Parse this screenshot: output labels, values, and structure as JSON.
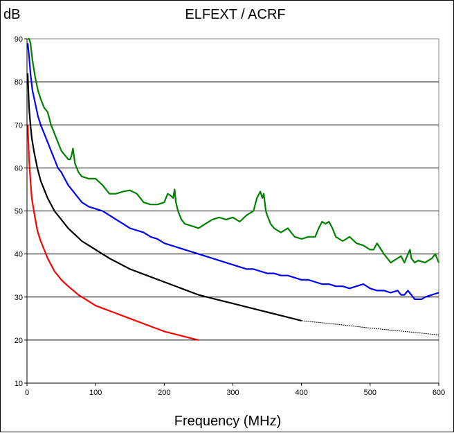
{
  "chart_data": {
    "type": "line",
    "title": "ELFEXT / ACRF",
    "ylabel": "dB",
    "xlabel": "Frequency (MHz)",
    "xlim": [
      0,
      600
    ],
    "ylim": [
      10,
      90
    ],
    "x_ticks": [
      0,
      100,
      200,
      300,
      400,
      500,
      600
    ],
    "y_ticks": [
      10,
      20,
      30,
      40,
      50,
      60,
      70,
      80,
      90
    ],
    "grid": "horizontal",
    "series": [
      {
        "color": "#008000",
        "x": [
          1,
          3,
          5,
          8,
          12,
          16,
          20,
          25,
          30,
          35,
          40,
          45,
          50,
          55,
          60,
          63,
          65,
          67,
          70,
          75,
          80,
          90,
          100,
          110,
          120,
          130,
          140,
          150,
          160,
          170,
          180,
          190,
          200,
          205,
          210,
          213,
          215,
          217,
          220,
          225,
          230,
          240,
          250,
          260,
          270,
          280,
          290,
          300,
          310,
          320,
          330,
          335,
          340,
          343,
          345,
          348,
          350,
          355,
          360,
          370,
          380,
          390,
          400,
          410,
          420,
          425,
          430,
          435,
          440,
          445,
          450,
          460,
          470,
          480,
          490,
          500,
          505,
          510,
          520,
          530,
          540,
          545,
          550,
          555,
          558,
          560,
          565,
          570,
          580,
          590,
          595,
          600
        ],
        "y": [
          90,
          90,
          89,
          85,
          81,
          78,
          76,
          74,
          73,
          70,
          68,
          66,
          64,
          63,
          62,
          62,
          63,
          64.5,
          61,
          59,
          58,
          57.5,
          57.5,
          56,
          54,
          54,
          54.5,
          54.8,
          54,
          52,
          51.5,
          51.5,
          52,
          54,
          53.5,
          53,
          55,
          52,
          50,
          48,
          47,
          46.5,
          46,
          47,
          48,
          48.5,
          48,
          48.5,
          47.5,
          49,
          50,
          53,
          54.5,
          53,
          54,
          50,
          49,
          47,
          46,
          45,
          46,
          44,
          43.5,
          44,
          44,
          46,
          47.5,
          47,
          47.5,
          46,
          44,
          43,
          44,
          42.5,
          42,
          41,
          41,
          42.5,
          40,
          38,
          39,
          39.5,
          38,
          40,
          41,
          39,
          38,
          38.5,
          38,
          39,
          40,
          38
        ]
      },
      {
        "color": "#0000ff",
        "x": [
          1,
          3,
          5,
          8,
          12,
          16,
          20,
          25,
          30,
          35,
          40,
          45,
          50,
          55,
          60,
          65,
          70,
          75,
          80,
          90,
          100,
          110,
          120,
          130,
          140,
          150,
          160,
          170,
          180,
          190,
          200,
          210,
          220,
          230,
          240,
          250,
          260,
          270,
          280,
          290,
          300,
          310,
          320,
          330,
          340,
          350,
          360,
          370,
          380,
          390,
          400,
          410,
          420,
          430,
          440,
          450,
          460,
          470,
          480,
          490,
          500,
          510,
          520,
          530,
          540,
          545,
          550,
          555,
          560,
          565,
          570,
          575,
          580,
          590,
          600
        ],
        "y": [
          89,
          86,
          82,
          78,
          75,
          72,
          70,
          68,
          66,
          64,
          62,
          60,
          59,
          57.5,
          56,
          55,
          54,
          53,
          52,
          51,
          50.5,
          50,
          49,
          48,
          47,
          46,
          45.5,
          45,
          44,
          43.5,
          42.5,
          42,
          41.5,
          41,
          40.5,
          40,
          39.5,
          39,
          38.5,
          38,
          37.5,
          37,
          36.5,
          36.5,
          36,
          35.5,
          35.5,
          35,
          35,
          34.5,
          34,
          34,
          33.5,
          33,
          33,
          32.5,
          32.5,
          32,
          32.5,
          33,
          32,
          31.5,
          31.5,
          31,
          31.5,
          30.5,
          30.5,
          31.5,
          30.5,
          29.5,
          29.5,
          29.5,
          30,
          30.5,
          31
        ]
      },
      {
        "color": "#000000",
        "x": [
          1,
          2,
          3,
          5,
          7,
          10,
          15,
          20,
          25,
          30,
          40,
          50,
          60,
          70,
          80,
          100,
          120,
          150,
          175,
          200,
          225,
          250,
          275,
          300,
          325,
          350,
          375,
          400
        ],
        "y": [
          82,
          78,
          74,
          70,
          67,
          64,
          60,
          57,
          55,
          53,
          50,
          48,
          46,
          44.5,
          43,
          41,
          39,
          36.5,
          35,
          33.5,
          32,
          30.5,
          29.5,
          28.5,
          27.5,
          26.5,
          25.5,
          24.5
        ]
      },
      {
        "color": "#000000",
        "dashed": true,
        "x": [
          400,
          450,
          500,
          550,
          600
        ],
        "y": [
          24.5,
          23.7,
          22.8,
          22,
          21.2
        ]
      },
      {
        "color": "#ff0000",
        "x": [
          1,
          2,
          3,
          5,
          7,
          10,
          15,
          20,
          25,
          30,
          40,
          50,
          60,
          75,
          100,
          125,
          150,
          175,
          200,
          225,
          250
        ],
        "y": [
          70,
          66,
          62,
          57,
          53,
          50,
          45.5,
          43,
          41,
          39,
          36,
          34,
          32.5,
          30.5,
          28,
          26.5,
          25,
          23.5,
          22,
          21,
          20
        ]
      }
    ]
  }
}
